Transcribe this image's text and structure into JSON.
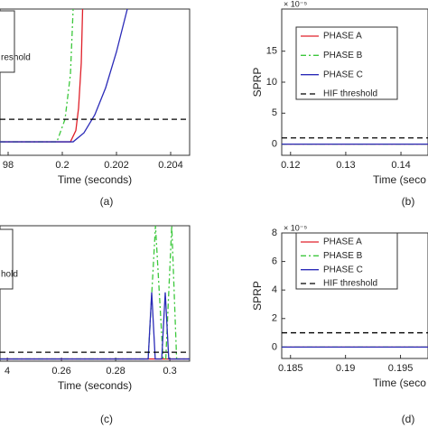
{
  "chart_data": [
    {
      "type": "line",
      "xlabel": "Time (seconds)",
      "panel": "(a)",
      "xlim": [
        0.1977,
        0.2047
      ],
      "ylim": [
        -0.6,
        5.9
      ],
      "xticks": [
        {
          "value": 0.198,
          "label": "98"
        },
        0.2,
        0.202,
        0.204
      ],
      "series": [
        {
          "color": "#e0202a",
          "dash": "solid",
          "x": [
            0.1977,
            0.2003,
            0.2005,
            0.2006,
            0.2007,
            0.20075
          ],
          "values": [
            0,
            0,
            0.5,
            1.5,
            3.5,
            5.9
          ]
        },
        {
          "color": "#3cc83c",
          "dash": "dashdot",
          "x": [
            0.1977,
            0.1998,
            0.2001,
            0.2003,
            0.2004
          ],
          "values": [
            0,
            0,
            1,
            3,
            5.9
          ]
        },
        {
          "color": "#2b2bb8",
          "dash": "solid",
          "x": [
            0.1977,
            0.2004,
            0.2008,
            0.2012,
            0.2016,
            0.202,
            0.2024
          ],
          "values": [
            0,
            0,
            0.4,
            1.2,
            2.4,
            4,
            5.9
          ]
        },
        {
          "name": "reshold",
          "color": "#000000",
          "dash": "dashed",
          "x": [
            0.1977,
            0.2047
          ],
          "values": [
            1,
            1
          ]
        }
      ]
    },
    {
      "type": "line",
      "xlabel": "Time (seco",
      "ylabel": "SPRP",
      "panel": "(b)",
      "exponent": "× 10⁻⁵",
      "xlim": [
        0.1184,
        0.1449
      ],
      "ylim": [
        -1.8,
        21.8
      ],
      "xticks": [
        0.12,
        0.13,
        0.14
      ],
      "yticks": [
        0,
        5,
        10,
        15
      ],
      "series": [
        {
          "name": "PHASE A",
          "color": "#e0202a",
          "dash": "solid",
          "x": [
            0.1184,
            0.1449
          ],
          "values": [
            0,
            0
          ]
        },
        {
          "name": "PHASE B",
          "color": "#3cc83c",
          "dash": "dashdot",
          "x": [
            0.1184,
            0.1449
          ],
          "values": [
            0,
            0
          ]
        },
        {
          "name": "PHASE C",
          "color": "#2b2bb8",
          "dash": "solid",
          "x": [
            0.1184,
            0.1449
          ],
          "values": [
            0,
            0
          ]
        },
        {
          "name": "HIF threshold",
          "color": "#000000",
          "dash": "dashed",
          "x": [
            0.1184,
            0.1449
          ],
          "values": [
            1,
            1
          ]
        }
      ]
    },
    {
      "type": "line",
      "xlabel": "Time (seconds)",
      "panel": "(c)",
      "xlim": [
        0.2373,
        0.3073
      ],
      "ylim": [
        -0.1,
        6
      ],
      "xticks": [
        {
          "value": 0.24,
          "label": "4"
        },
        0.26,
        0.28,
        0.3
      ],
      "series": [
        {
          "color": "#e0202a",
          "dash": "solid",
          "x": [
            0.2373,
            0.3073
          ],
          "values": [
            0,
            0
          ]
        },
        {
          "color": "#3cc83c",
          "dash": "dashdot",
          "x": [
            0.2373,
            0.292,
            0.2947,
            0.2975,
            0.2985,
            0.3007,
            0.3025,
            0.3073
          ],
          "values": [
            0,
            0,
            6,
            0,
            0,
            6,
            0,
            0
          ]
        },
        {
          "color": "#2b2bb8",
          "dash": "solid",
          "x": [
            0.2373,
            0.292,
            0.2933,
            0.2946,
            0.297,
            0.2983,
            0.2996,
            0.3073
          ],
          "values": [
            0,
            0,
            3,
            0,
            0,
            3,
            0,
            0
          ]
        },
        {
          "name": "hold",
          "color": "#000000",
          "dash": "dashed",
          "x": [
            0.2373,
            0.3073
          ],
          "values": [
            0.3,
            0.3
          ]
        }
      ]
    },
    {
      "type": "line",
      "xlabel": "Time (seco",
      "ylabel": "SPRP",
      "panel": "(d)",
      "exponent": "× 10⁻⁵",
      "xlim": [
        0.1842,
        0.1975
      ],
      "ylim": [
        -0.8,
        8
      ],
      "xticks": [
        0.185,
        0.19,
        0.195
      ],
      "yticks": [
        0,
        2,
        4,
        6,
        8
      ],
      "series": [
        {
          "name": "PHASE A",
          "color": "#e0202a",
          "dash": "solid",
          "x": [
            0.1842,
            0.1975
          ],
          "values": [
            0,
            0
          ]
        },
        {
          "name": "PHASE B",
          "color": "#3cc83c",
          "dash": "dashdot",
          "x": [
            0.1842,
            0.1975
          ],
          "values": [
            0,
            0
          ]
        },
        {
          "name": "PHASE C",
          "color": "#2b2bb8",
          "dash": "solid",
          "x": [
            0.1842,
            0.1975
          ],
          "values": [
            0,
            0
          ]
        },
        {
          "name": "HIF threshold",
          "color": "#000000",
          "dash": "dashed",
          "x": [
            0.1842,
            0.1975
          ],
          "values": [
            1,
            1
          ]
        }
      ]
    }
  ]
}
